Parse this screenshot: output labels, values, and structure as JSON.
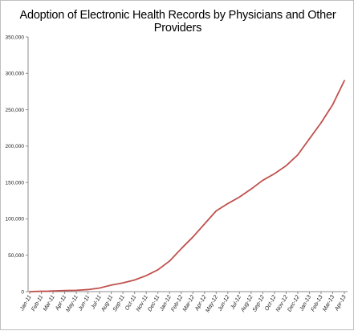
{
  "chart_data": {
    "type": "line",
    "title": "Adoption of Electronic Health Records by Physicians and Other Providers",
    "xlabel": "",
    "ylabel": "",
    "ylim": [
      0,
      350000
    ],
    "yticks": [
      0,
      50000,
      100000,
      150000,
      200000,
      250000,
      300000,
      350000
    ],
    "ytick_labels": [
      "0",
      "50,000",
      "100,000",
      "150,000",
      "200,000",
      "250,000",
      "300,000",
      "350,000"
    ],
    "grid": false,
    "legend": "none",
    "categories": [
      "Jan-11",
      "Feb-11",
      "Mar-11",
      "Apr-11",
      "May-11",
      "Jun-11",
      "Jul-11",
      "Aug-11",
      "Sep-11",
      "Oct-11",
      "Nov-11",
      "Dec-11",
      "Jan-12",
      "Feb-12",
      "Mar-12",
      "Apr-12",
      "May-12",
      "Jun-12",
      "Jul-12",
      "Aug-12",
      "Sep-12",
      "Oct-12",
      "Nov-12",
      "Dec-12",
      "Jan-13",
      "Feb-13",
      "Mar-13",
      "Apr-13"
    ],
    "x": [
      "Jan-11",
      "Feb-11",
      "Mar-11",
      "Apr-11",
      "May-11",
      "Jun-11",
      "Jul-11",
      "Aug-11",
      "Sep-11",
      "Oct-11",
      "Nov-11",
      "Dec-11",
      "Jan-12",
      "Feb-12",
      "Mar-12",
      "Apr-12",
      "May-12",
      "Jun-12",
      "Jul-12",
      "Aug-12",
      "Sep-12",
      "Oct-12",
      "Nov-12",
      "Dec-12",
      "Jan-13",
      "Feb-13",
      "Mar-13",
      "Apr-13",
      "Apr-13"
    ],
    "series": [
      {
        "color": "#c0504d",
        "points": [
          [
            0,
            0
          ],
          [
            1,
            500
          ],
          [
            1.6,
            600
          ],
          [
            2,
            1000
          ],
          [
            3,
            1500
          ],
          [
            4,
            1800
          ],
          [
            5,
            2800
          ],
          [
            6,
            5000
          ],
          [
            7,
            9000
          ],
          [
            8,
            12000
          ],
          [
            9,
            16000
          ],
          [
            10,
            22000
          ],
          [
            11,
            30000
          ],
          [
            12,
            42000
          ],
          [
            13,
            59000
          ],
          [
            14,
            75000
          ],
          [
            15,
            93000
          ],
          [
            16,
            111000
          ],
          [
            17,
            121000
          ],
          [
            18,
            130000
          ],
          [
            19,
            141000
          ],
          [
            20,
            153000
          ],
          [
            21,
            162000
          ],
          [
            22,
            173000
          ],
          [
            23,
            188000
          ],
          [
            24,
            210000
          ],
          [
            25,
            232000
          ],
          [
            26,
            257000
          ],
          [
            27,
            290000
          ]
        ]
      }
    ]
  },
  "colors": {
    "line": "#c0504d",
    "axis": "#8c8c8c",
    "border": "#bfbfbf"
  }
}
